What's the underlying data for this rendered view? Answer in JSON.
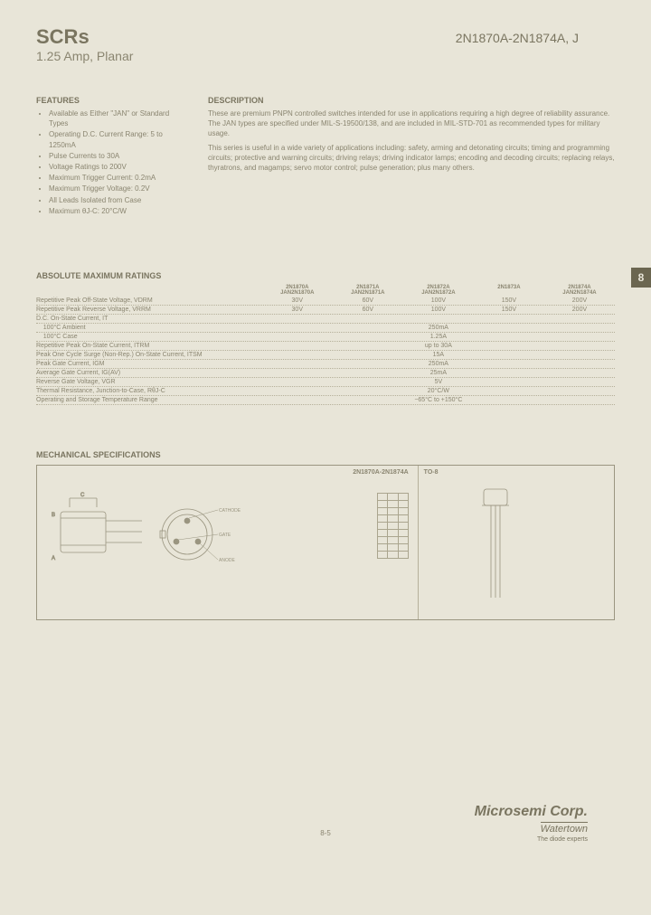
{
  "header": {
    "title": "SCRs",
    "subtitle": "1.25 Amp, Planar",
    "part_range": "2N1870A-2N1874A, J"
  },
  "features_hdr": "FEATURES",
  "features": [
    "Available as Either \"JAN\" or Standard Types",
    "Operating D.C. Current Range: 5 to 1250mA",
    "Pulse Currents to 30A",
    "Voltage Ratings to 200V",
    "Maximum Trigger Current: 0.2mA",
    "Maximum Trigger Voltage: 0.2V",
    "All Leads Isolated from Case",
    "Maximum θJ-C: 20°C/W"
  ],
  "description_hdr": "DESCRIPTION",
  "description": [
    "These are premium PNPN controlled switches intended for use in applications requiring a high degree of reliability assurance. The JAN types are specified under MIL-S-19500/138, and are included in MIL-STD-701 as recommended types for military usage.",
    "This series is useful in a wide variety of applications including: safety, arming and detonating circuits; timing and programming circuits; protective and warning circuits; driving relays; driving indicator lamps; encoding and decoding circuits; replacing relays, thyratrons, and magamps; servo motor control; pulse generation; plus many others."
  ],
  "tab": "8",
  "ratings_hdr": "ABSOLUTE MAXIMUM RATINGS",
  "ratings_cols": [
    {
      "a": "2N1870A",
      "b": "JAN2N1870A"
    },
    {
      "a": "2N1871A",
      "b": "JAN2N1871A"
    },
    {
      "a": "2N1872A",
      "b": "JAN2N1872A"
    },
    {
      "a": "2N1873A",
      "b": ""
    },
    {
      "a": "2N1874A",
      "b": "JAN2N1874A"
    }
  ],
  "ratings_multi": [
    {
      "label": "Repetitive Peak Off-State Voltage, VDRM",
      "vals": [
        "30V",
        "60V",
        "100V",
        "150V",
        "200V"
      ]
    },
    {
      "label": "Repetitive Peak Reverse Voltage, VRRM",
      "vals": [
        "30V",
        "60V",
        "100V",
        "150V",
        "200V"
      ]
    }
  ],
  "ratings_single": [
    {
      "label": "D.C. On-State Current, IT",
      "val": ""
    },
    {
      "label": "    100°C Ambient",
      "val": "250mA"
    },
    {
      "label": "    100°C Case",
      "val": "1.25A"
    },
    {
      "label": "Repetitive Peak On-State Current, ITRM",
      "val": "up to 30A"
    },
    {
      "label": "Peak One Cycle Surge (Non-Rep.) On-State Current, ITSM",
      "val": "15A"
    },
    {
      "label": "Peak Gate Current, IGM",
      "val": "250mA"
    },
    {
      "label": "Average Gate Current, IG(AV)",
      "val": "25mA"
    },
    {
      "label": "Reverse Gate Voltage, VGR",
      "val": "5V"
    },
    {
      "label": "Thermal Resistance, Junction-to-Case, RθJ-C",
      "val": "20°C/W"
    },
    {
      "label": "Operating and Storage Temperature Range",
      "val": "−65°C to +150°C"
    }
  ],
  "mech_hdr": "MECHANICAL SPECIFICATIONS",
  "mech_left_title": "2N1870A-2N1874A",
  "mech_right_title": "TO-8",
  "pin_labels": [
    "CATHODE",
    "GATE",
    "ANODE"
  ],
  "pin_rows": 9,
  "footer": {
    "company": "Microsemi Corp.",
    "location": "Watertown",
    "tagline": "The diode experts",
    "page": "8-5"
  },
  "colors": {
    "bg": "#e8e5d8",
    "text": "#8a8570",
    "dark": "#7a7560",
    "line": "#9a9580"
  }
}
